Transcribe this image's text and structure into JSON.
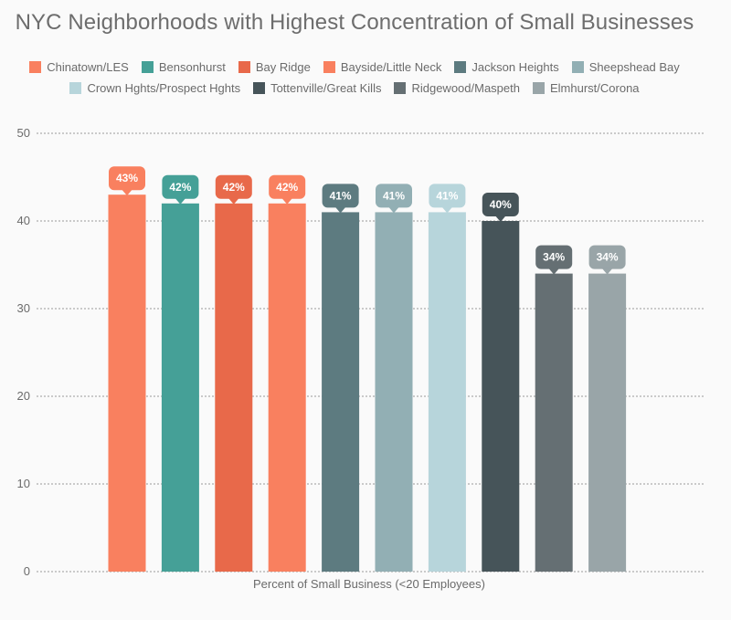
{
  "chart_data": {
    "type": "bar",
    "title": "NYC Neighborhoods with Highest Concentration of Small Businesses",
    "xlabel": "Percent of Small Business (<20 Employees)",
    "ylabel": "",
    "ylim": [
      0,
      50
    ],
    "yticks": [
      0,
      10,
      20,
      30,
      40,
      50
    ],
    "grid": true,
    "legend_position": "top",
    "value_suffix": "%",
    "series": [
      {
        "name": "Chinatown/LES",
        "value": 43,
        "color": "#f9805f"
      },
      {
        "name": "Bensonhurst",
        "value": 42,
        "color": "#45a097"
      },
      {
        "name": "Bay Ridge",
        "value": 42,
        "color": "#e8694a"
      },
      {
        "name": "Bayside/Little Neck",
        "value": 42,
        "color": "#f9805f"
      },
      {
        "name": "Jackson Heights",
        "value": 41,
        "color": "#5d7b80"
      },
      {
        "name": "Sheepshead Bay",
        "value": 41,
        "color": "#92afb4"
      },
      {
        "name": "Crown Hghts/Prospect Hghts",
        "value": 41,
        "color": "#b7d5db"
      },
      {
        "name": "Tottenville/Great Kills",
        "value": 40,
        "color": "#465459"
      },
      {
        "name": "Ridgewood/Maspeth",
        "value": 34,
        "color": "#656f73"
      },
      {
        "name": "Elmhurst/Corona",
        "value": 34,
        "color": "#99a5a8"
      }
    ],
    "label_text_colors": [
      "#ffffff",
      "#ffffff",
      "#ffffff",
      "#ffffff",
      "#ffffff",
      "#ffffff",
      "#3a4447",
      "#ffffff",
      "#ffffff",
      "#ffffff"
    ]
  }
}
